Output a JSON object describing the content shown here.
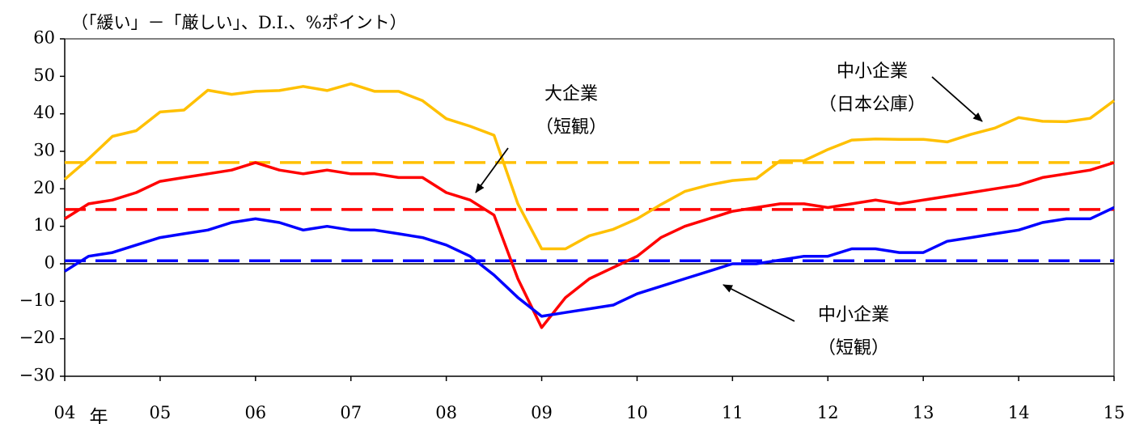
{
  "chart_data": {
    "type": "line",
    "unit_label": "（「緩い」－「厳しい」、D.I.、%ポイント）",
    "ylim": [
      -30,
      60
    ],
    "yticks": [
      "60",
      "50",
      "40",
      "30",
      "20",
      "10",
      "0",
      "-10",
      "-20",
      "-30"
    ],
    "ytick_values": [
      60,
      50,
      40,
      30,
      20,
      10,
      0,
      -10,
      -20,
      -30
    ],
    "xlim": [
      2004,
      2015
    ],
    "xticks": [
      {
        "label": "04",
        "value": 2004
      },
      {
        "label": "05",
        "value": 2005
      },
      {
        "label": "06",
        "value": 2006
      },
      {
        "label": "07",
        "value": 2007
      },
      {
        "label": "08",
        "value": 2008
      },
      {
        "label": "09",
        "value": 2009
      },
      {
        "label": "10",
        "value": 2010
      },
      {
        "label": "11",
        "value": 2011
      },
      {
        "label": "12",
        "value": 2012
      },
      {
        "label": "13",
        "value": 2013
      },
      {
        "label": "14",
        "value": 2014
      },
      {
        "label": "15",
        "value": 2015
      }
    ],
    "year_suffix": "年",
    "series": [
      {
        "name": "中小企業（日本公庫）",
        "color": "#FFC000",
        "average": 27,
        "x": [
          2004,
          2004.25,
          2004.5,
          2004.75,
          2005,
          2005.25,
          2005.5,
          2005.75,
          2006,
          2006.25,
          2006.5,
          2006.75,
          2007,
          2007.25,
          2007.5,
          2007.75,
          2008,
          2008.25,
          2008.5,
          2008.75,
          2009,
          2009.25,
          2009.5,
          2009.75,
          2010,
          2010.25,
          2010.5,
          2010.75,
          2011,
          2011.25,
          2011.5,
          2011.75,
          2012,
          2012.25,
          2012.5,
          2012.75,
          2013,
          2013.25,
          2013.5,
          2013.75,
          2014,
          2014.25,
          2014.5,
          2014.75,
          2015
        ],
        "values": [
          22.5,
          28,
          34,
          35.5,
          40.5,
          41,
          46.3,
          45.2,
          46,
          46.2,
          47.3,
          46.2,
          48,
          46,
          46,
          43.5,
          38.7,
          36.7,
          34.3,
          16,
          4,
          4,
          7.5,
          9.2,
          12,
          15.8,
          19.3,
          21,
          22.2,
          22.7,
          27.5,
          27.5,
          30.5,
          33,
          33.3,
          33.2,
          33.2,
          32.5,
          34.5,
          36.2,
          39,
          38,
          37.9,
          38.8,
          43.5
        ]
      },
      {
        "name": "大企業（短観）",
        "color": "#FF0000",
        "average": 14.5,
        "x": [
          2004,
          2004.25,
          2004.5,
          2004.75,
          2005,
          2005.25,
          2005.5,
          2005.75,
          2006,
          2006.25,
          2006.5,
          2006.75,
          2007,
          2007.25,
          2007.5,
          2007.75,
          2008,
          2008.25,
          2008.5,
          2008.75,
          2009,
          2009.25,
          2009.5,
          2009.75,
          2010,
          2010.25,
          2010.5,
          2010.75,
          2011,
          2011.25,
          2011.5,
          2011.75,
          2012,
          2012.25,
          2012.5,
          2012.75,
          2013,
          2013.25,
          2013.5,
          2013.75,
          2014,
          2014.25,
          2014.5,
          2014.75,
          2015
        ],
        "values": [
          12,
          16,
          17,
          19,
          22,
          23,
          24,
          25,
          27,
          25,
          24,
          25,
          24,
          24,
          23,
          23,
          19,
          17,
          13,
          -4,
          -17,
          -9,
          -4,
          -1,
          2,
          7,
          10,
          12,
          14,
          15,
          16,
          16,
          15,
          16,
          17,
          16,
          17,
          18,
          19,
          20,
          21,
          23,
          24,
          25,
          27
        ]
      },
      {
        "name": "中小企業（短観）",
        "color": "#0000FF",
        "average": 0.8,
        "x": [
          2004,
          2004.25,
          2004.5,
          2004.75,
          2005,
          2005.25,
          2005.5,
          2005.75,
          2006,
          2006.25,
          2006.5,
          2006.75,
          2007,
          2007.25,
          2007.5,
          2007.75,
          2008,
          2008.25,
          2008.5,
          2008.75,
          2009,
          2009.25,
          2009.5,
          2009.75,
          2010,
          2010.25,
          2010.5,
          2010.75,
          2011,
          2011.25,
          2011.5,
          2011.75,
          2012,
          2012.25,
          2012.5,
          2012.75,
          2013,
          2013.25,
          2013.5,
          2013.75,
          2014,
          2014.25,
          2014.5,
          2014.75,
          2015
        ],
        "values": [
          -2,
          2,
          3,
          5,
          7,
          8,
          9,
          11,
          12,
          11,
          9,
          10,
          9,
          9,
          8,
          7,
          5,
          2,
          -3,
          -9,
          -14,
          -13,
          -12,
          -11,
          -8,
          -6,
          -4,
          -2,
          0,
          0,
          1,
          2,
          2,
          4,
          4,
          3,
          3,
          6,
          7,
          8,
          9,
          11,
          12,
          12,
          15
        ]
      }
    ],
    "annotations": [
      {
        "text": [
          "大企業",
          "（短観）"
        ],
        "series": 1
      },
      {
        "text": [
          "中小企業",
          "（日本公庫）"
        ],
        "series": 0
      },
      {
        "text": [
          "中小企業",
          "（短観）"
        ],
        "series": 2
      }
    ]
  }
}
